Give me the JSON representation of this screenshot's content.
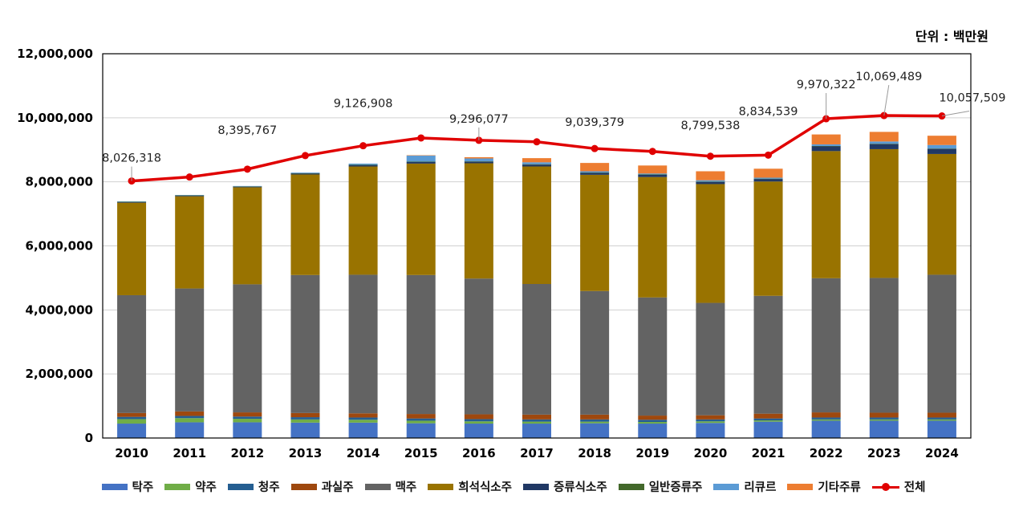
{
  "unit_label": "단위 : 백만원",
  "chart_data": {
    "type": "stacked-bar-with-line",
    "categories": [
      "2010",
      "2011",
      "2012",
      "2013",
      "2014",
      "2015",
      "2016",
      "2017",
      "2018",
      "2019",
      "2020",
      "2021",
      "2022",
      "2023",
      "2024"
    ],
    "ylim": [
      0,
      12000000
    ],
    "yticks": [
      0,
      2000000,
      4000000,
      6000000,
      8000000,
      10000000,
      12000000
    ],
    "ytick_labels": [
      "0",
      "2,000,000",
      "4,000,000",
      "6,000,000",
      "8,000,000",
      "10,000,000",
      "12,000,000"
    ],
    "series": [
      {
        "name": "탁주",
        "color": "#4472C4",
        "values": [
          450000,
          490000,
          490000,
          480000,
          480000,
          460000,
          450000,
          450000,
          460000,
          450000,
          470000,
          510000,
          540000,
          540000,
          540000
        ]
      },
      {
        "name": "약주",
        "color": "#70AD47",
        "values": [
          140000,
          130000,
          110000,
          100000,
          90000,
          80000,
          70000,
          60000,
          50000,
          50000,
          50000,
          40000,
          40000,
          40000,
          40000
        ]
      },
      {
        "name": "청주",
        "color": "#255E91",
        "values": [
          70000,
          70000,
          70000,
          70000,
          70000,
          70000,
          70000,
          70000,
          70000,
          70000,
          60000,
          60000,
          60000,
          60000,
          60000
        ]
      },
      {
        "name": "과실주",
        "color": "#9E480E",
        "values": [
          120000,
          140000,
          130000,
          130000,
          130000,
          140000,
          150000,
          150000,
          150000,
          130000,
          130000,
          150000,
          160000,
          150000,
          150000
        ]
      },
      {
        "name": "맥주",
        "color": "#636363",
        "values": [
          3680000,
          3840000,
          4000000,
          4310000,
          4330000,
          4340000,
          4240000,
          4080000,
          3860000,
          3690000,
          3510000,
          3680000,
          4190000,
          4210000,
          4310000
        ]
      },
      {
        "name": "희석식소주",
        "color": "#997300",
        "values": [
          2890000,
          2880000,
          3030000,
          3140000,
          3380000,
          3480000,
          3600000,
          3670000,
          3630000,
          3760000,
          3710000,
          3570000,
          3970000,
          4020000,
          3770000
        ]
      },
      {
        "name": "증류식소주",
        "color": "#203864",
        "values": [
          20000,
          20000,
          20000,
          30000,
          40000,
          50000,
          50000,
          60000,
          60000,
          70000,
          70000,
          80000,
          150000,
          160000,
          160000
        ]
      },
      {
        "name": "일반증류주",
        "color": "#43682B",
        "values": [
          10000,
          10000,
          10000,
          10000,
          10000,
          10000,
          10000,
          10000,
          10000,
          10000,
          10000,
          10000,
          10000,
          10000,
          10000
        ]
      },
      {
        "name": "리큐르",
        "color": "#5B9BD5",
        "values": [
          10000,
          10000,
          10000,
          20000,
          40000,
          190000,
          90000,
          60000,
          40000,
          30000,
          40000,
          30000,
          50000,
          70000,
          110000
        ]
      },
      {
        "name": "기타주류",
        "color": "#ED7D31",
        "values": [
          0,
          0,
          0,
          0,
          0,
          10000,
          40000,
          130000,
          260000,
          250000,
          280000,
          280000,
          310000,
          300000,
          290000
        ]
      }
    ],
    "line": {
      "name": "전체",
      "color": "#E00000",
      "values": [
        8026318,
        8150000,
        8395767,
        8820000,
        9126908,
        9370000,
        9296077,
        9250000,
        9039379,
        8950000,
        8799538,
        8834539,
        9970322,
        10069489,
        10057509
      ],
      "labeled": {
        "2010": "8,026,318",
        "2012": "8,395,767",
        "2014": "9,126,908",
        "2016": "9,296,077",
        "2018": "9,039,379",
        "2020": "8,799,538",
        "2021": "8,834,539",
        "2022": "9,970,322",
        "2023": "10,069,489",
        "2024": "10,057,509"
      }
    }
  }
}
